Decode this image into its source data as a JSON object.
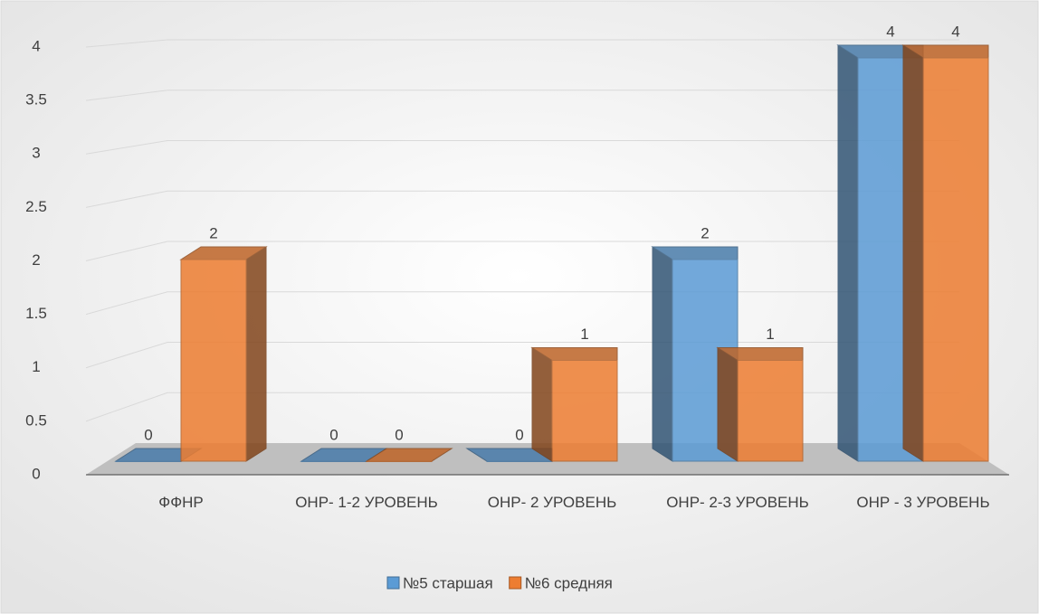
{
  "chart_data": {
    "type": "bar3d",
    "categories": [
      "ФФНР",
      "ОНР- 1-2 УРОВЕНЬ",
      "ОНР- 2 УРОВЕНЬ",
      "ОНР- 2-3 УРОВЕНЬ",
      "ОНР - 3 УРОВЕНЬ"
    ],
    "series": [
      {
        "name": "№5 старшая",
        "color": "#5b9bd5",
        "values": [
          0,
          0,
          0,
          2,
          4
        ]
      },
      {
        "name": "№6 средняя",
        "color": "#ed7d31",
        "values": [
          2,
          0,
          1,
          1,
          4
        ]
      }
    ],
    "ylim": [
      0,
      4
    ],
    "yticks": [
      0,
      0.5,
      1,
      1.5,
      2,
      2.5,
      3,
      3.5,
      4
    ],
    "grid": true,
    "legend": "bottom"
  }
}
